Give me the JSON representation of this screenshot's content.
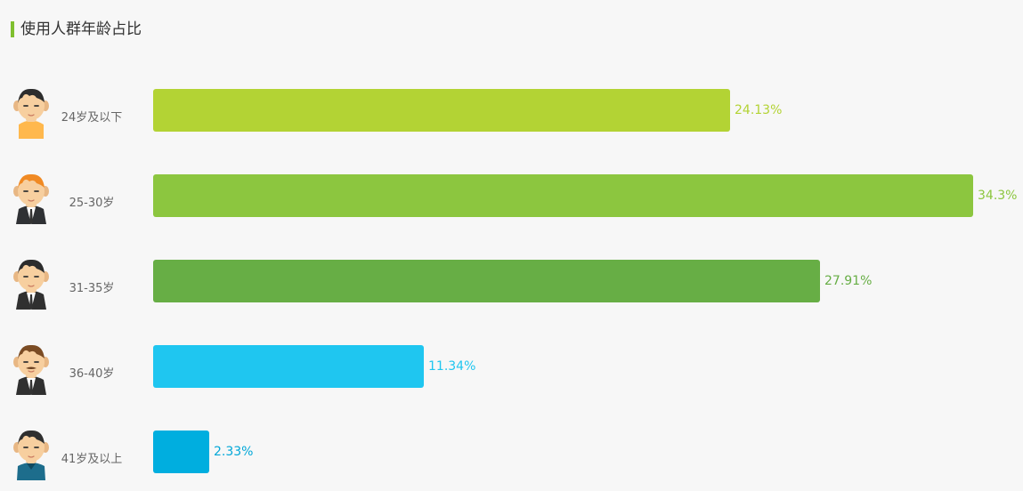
{
  "section": {
    "title": "使用人群年龄占比",
    "accent_color": "#7fbf2f"
  },
  "chart_data": {
    "type": "bar",
    "orientation": "horizontal",
    "categories": [
      "24岁及以下",
      "25-30岁",
      "31-35岁",
      "36-40岁",
      "41岁及以上"
    ],
    "values": [
      24.13,
      34.3,
      27.91,
      11.34,
      2.33
    ],
    "value_labels": [
      "24.13%",
      "34.3%",
      "27.91%",
      "11.34%",
      "2.33%"
    ],
    "colors": [
      "#b3d334",
      "#8cc63f",
      "#67ae45",
      "#1fc6f0",
      "#00aedf"
    ],
    "avatars": [
      "young-man-icon",
      "young-adult-man-icon",
      "adult-man-icon",
      "middle-aged-man-icon",
      "older-man-icon"
    ],
    "xlabel": "",
    "ylabel": "",
    "xlim": [
      0,
      34.3
    ],
    "grid": false
  }
}
